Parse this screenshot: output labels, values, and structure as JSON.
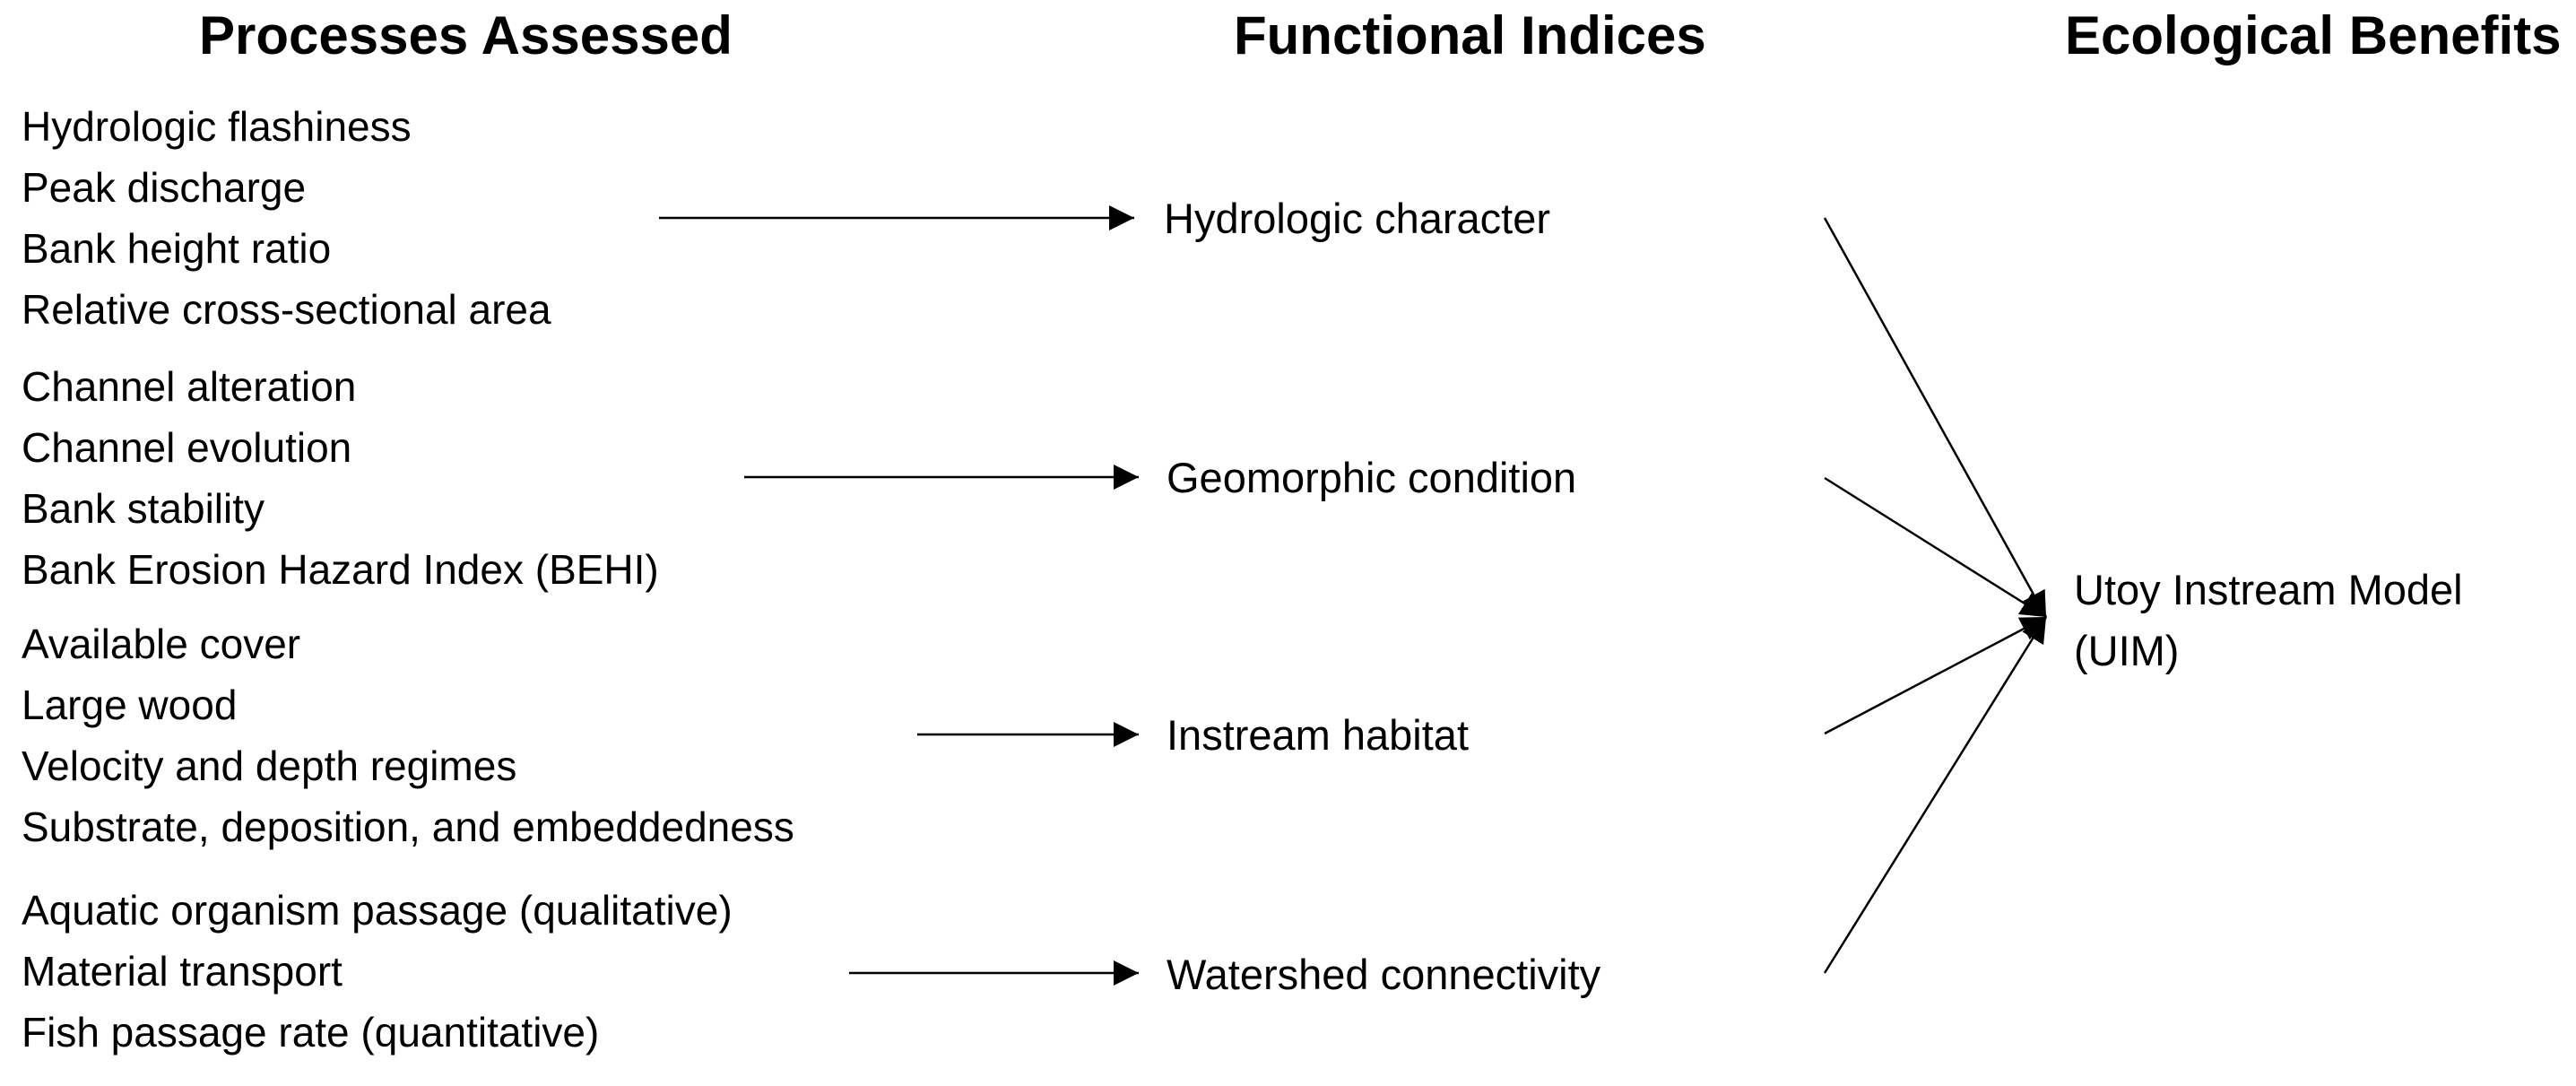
{
  "headers": {
    "processes": "Processes Assessed",
    "indices": "Functional Indices",
    "benefits": "Ecological Benefits"
  },
  "process_groups": [
    [
      "Hydrologic flashiness",
      "Peak discharge",
      "Bank height ratio",
      "Relative cross-sectional area"
    ],
    [
      "Channel alteration",
      "Channel evolution",
      "Bank stability",
      "Bank Erosion Hazard Index (BEHI)"
    ],
    [
      "Available cover",
      "Large wood",
      "Velocity and depth regimes",
      "Substrate, deposition, and embeddedness"
    ],
    [
      "Aquatic organism passage (qualitative)",
      "Material transport",
      "Fish passage rate (quantitative)"
    ]
  ],
  "indices": [
    "Hydrologic character",
    "Geomorphic condition",
    "Instream habitat",
    "Watershed connectivity"
  ],
  "benefit": {
    "line1": "Utoy Instream Model",
    "line2": "(UIM)"
  },
  "colors": {
    "text": "#000000",
    "arrow": "#000000",
    "background": "#ffffff"
  }
}
